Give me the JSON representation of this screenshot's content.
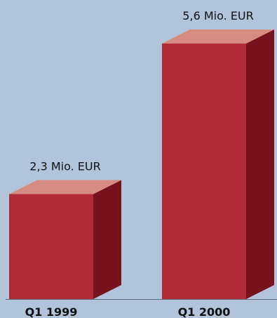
{
  "chart_data": {
    "type": "bar",
    "categories": [
      "Q1 1999",
      "Q1 2000"
    ],
    "values": [
      2.3,
      5.6
    ],
    "value_labels": [
      "2,3 Mio. EUR",
      "5,6 Mio. EUR"
    ],
    "unit": "Mio. EUR",
    "title": "",
    "xlabel": "",
    "ylabel": "",
    "ylim": [
      0,
      5.6
    ],
    "grid": false,
    "legend": "none"
  },
  "colors": {
    "background": "#b1c4da",
    "bar_front": "#b02a37",
    "bar_top": "#d68c80",
    "bar_side": "#76131c",
    "baseline": "#5d6878",
    "text": "#111111"
  }
}
